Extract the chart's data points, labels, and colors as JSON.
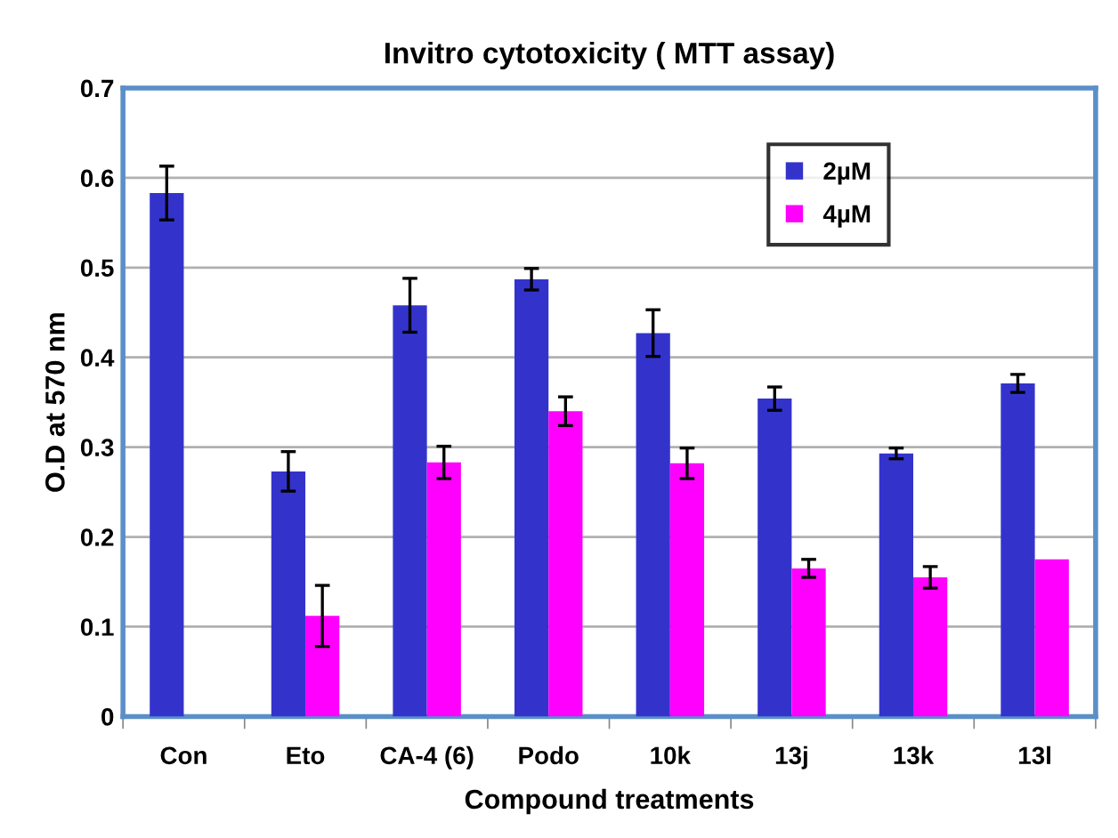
{
  "chart_data": {
    "type": "bar",
    "title": "Invitro cytotoxicity ( MTT assay)",
    "xlabel": "Compound treatments",
    "ylabel": "O.D at 570 nm",
    "categories": [
      "Con",
      "Eto",
      "CA-4 (6)",
      "Podo",
      "10k",
      "13j",
      "13k",
      "13l"
    ],
    "series": [
      {
        "name": "2µM",
        "color": "#3333cc",
        "values": [
          0.583,
          0.273,
          0.458,
          0.487,
          0.427,
          0.354,
          0.293,
          0.371
        ],
        "errors": [
          0.03,
          0.022,
          0.03,
          0.012,
          0.026,
          0.013,
          0.006,
          0.01
        ]
      },
      {
        "name": "4µM",
        "color": "#ff00ff",
        "values": [
          null,
          0.112,
          0.283,
          0.34,
          0.282,
          0.165,
          0.155,
          0.175
        ],
        "errors": [
          null,
          0.034,
          0.018,
          0.016,
          0.017,
          0.01,
          0.012,
          null
        ]
      }
    ],
    "ylim": [
      0,
      0.7
    ],
    "yticks": [
      0,
      0.1,
      0.2,
      0.3,
      0.4,
      0.5,
      0.6,
      0.7
    ],
    "grid": "y",
    "legend": "top right"
  }
}
